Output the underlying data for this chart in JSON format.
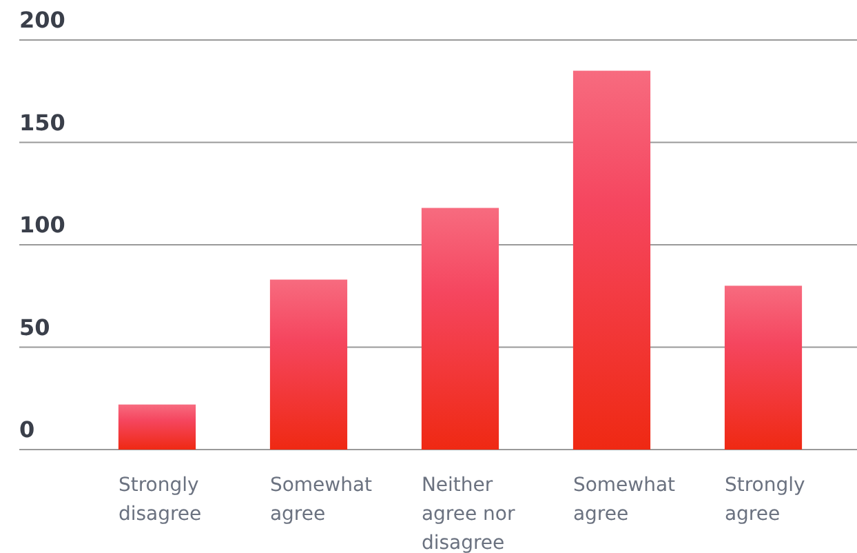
{
  "chart_data": {
    "type": "bar",
    "categories": [
      "Strongly disagree",
      "Somewhat agree",
      "Neither agree nor disagree",
      "Somewhat agree",
      "Strongly agree"
    ],
    "values": [
      22,
      83,
      118,
      185,
      80
    ],
    "color": "#f5465f",
    "ylim": [
      0,
      200
    ],
    "yticks": [
      0,
      50,
      100,
      150,
      200
    ],
    "grid": "y"
  }
}
